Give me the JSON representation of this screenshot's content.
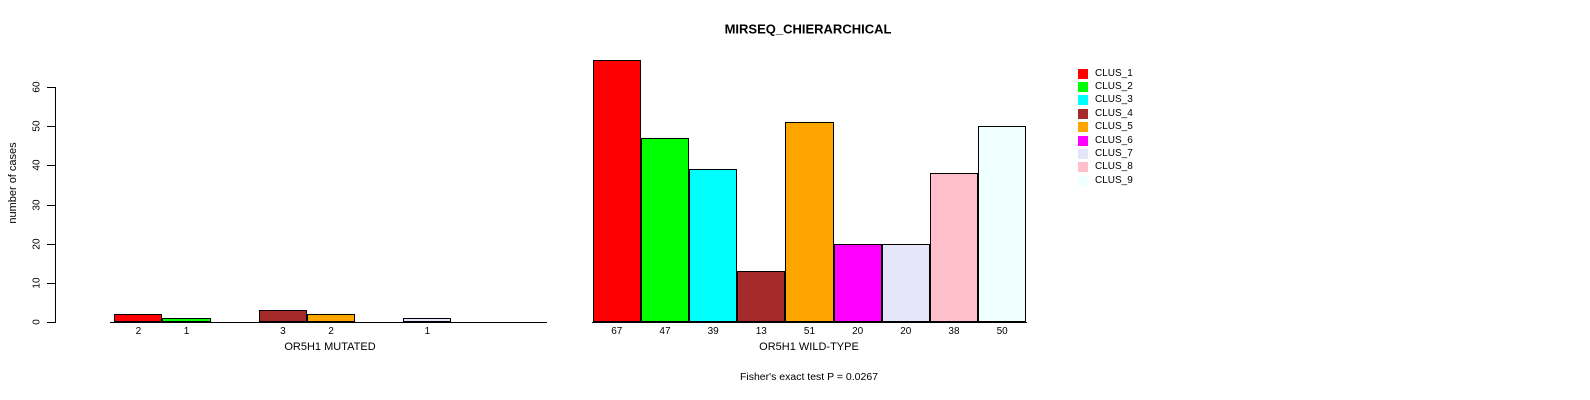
{
  "chart_data": {
    "type": "bar",
    "title": "MIRSEQ_CHIERARCHICAL",
    "ylabel": "number of cases",
    "footer": "Fisher's exact test P = 0.0267",
    "ylim": [
      0,
      60
    ],
    "yticks": [
      0,
      10,
      20,
      30,
      40,
      50,
      60
    ],
    "grid": false,
    "legend_position": "right",
    "clusters": [
      {
        "name": "CLUS_1",
        "color": "#FF0000"
      },
      {
        "name": "CLUS_2",
        "color": "#00FF00"
      },
      {
        "name": "CLUS_3",
        "color": "#00FFFF"
      },
      {
        "name": "CLUS_4",
        "color": "#A52A2A"
      },
      {
        "name": "CLUS_5",
        "color": "#FFA500"
      },
      {
        "name": "CLUS_6",
        "color": "#FF00FF"
      },
      {
        "name": "CLUS_7",
        "color": "#E6E6FA"
      },
      {
        "name": "CLUS_8",
        "color": "#FFC0CB"
      },
      {
        "name": "CLUS_9",
        "color": "#F0FFFF"
      }
    ],
    "groups": [
      {
        "label": "OR5H1 MUTATED",
        "values": [
          2,
          1,
          0,
          3,
          2,
          0,
          1,
          0,
          0
        ]
      },
      {
        "label": "OR5H1 WILD-TYPE",
        "values": [
          67,
          47,
          39,
          13,
          51,
          20,
          20,
          38,
          50
        ]
      }
    ]
  }
}
